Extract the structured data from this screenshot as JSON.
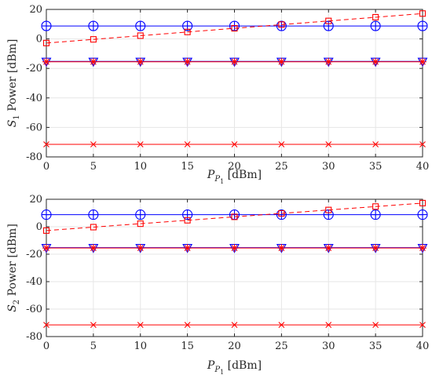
{
  "chart_data": [
    {
      "type": "line",
      "xlabel": "P_P1 [dBm]",
      "ylabel": "S_1 Power [dBm]",
      "ylabel_main": "S",
      "ylabel_sub": "1",
      "ylabel_rest": " Power [dBm]",
      "xlabel_main": "P",
      "xlabel_sub": "P",
      "xlabel_subsub": "1",
      "xlabel_rest": " [dBm]",
      "xlim": [
        0,
        40
      ],
      "ylim": [
        -80,
        20
      ],
      "xticks": [
        "0",
        "5",
        "10",
        "15",
        "20",
        "25",
        "30",
        "35",
        "40"
      ],
      "yticks": [
        "20",
        "0",
        "-20",
        "-40",
        "-60",
        "-80"
      ],
      "grid": true,
      "x": [
        0,
        5,
        10,
        15,
        20,
        25,
        30,
        35,
        40
      ],
      "series": [
        {
          "values": [
            8.8,
            8.8,
            8.8,
            8.8,
            8.8,
            8.8,
            8.8,
            8.8,
            8.8
          ],
          "color": "#0000ff",
          "line": "solid",
          "marker": "circle-plus"
        },
        {
          "values": [
            -2.8,
            -0.3,
            2.2,
            4.7,
            7.2,
            9.7,
            12.2,
            14.7,
            17.2
          ],
          "color": "#ff0000",
          "line": "dashed",
          "marker": "square"
        },
        {
          "values": [
            -15.2,
            -15.2,
            -15.2,
            -15.2,
            -15.2,
            -15.2,
            -15.2,
            -15.2,
            -15.2
          ],
          "color": "#0000ff",
          "line": "solid",
          "marker": "triangle-down"
        },
        {
          "values": [
            -15.5,
            -15.5,
            -15.5,
            -15.5,
            -15.5,
            -15.5,
            -15.5,
            -15.5,
            -15.5
          ],
          "color": "#ff0000",
          "line": "solid",
          "marker": "star"
        },
        {
          "values": [
            -71.5,
            -71.5,
            -71.5,
            -71.5,
            -71.5,
            -71.5,
            -71.5,
            -71.5,
            -71.5
          ],
          "color": "#ff0000",
          "line": "solid",
          "marker": "x"
        }
      ]
    },
    {
      "type": "line",
      "xlabel": "P_P1 [dBm]",
      "ylabel": "S_2 Power [dBm]",
      "ylabel_main": "S",
      "ylabel_sub": "2",
      "ylabel_rest": " Power [dBm]",
      "xlabel_main": "P",
      "xlabel_sub": "P",
      "xlabel_subsub": "1",
      "xlabel_rest": " [dBm]",
      "xlim": [
        0,
        40
      ],
      "ylim": [
        -80,
        20
      ],
      "xticks": [
        "0",
        "5",
        "10",
        "15",
        "20",
        "25",
        "30",
        "35",
        "40"
      ],
      "yticks": [
        "20",
        "0",
        "-20",
        "-40",
        "-60",
        "-80"
      ],
      "grid": true,
      "x": [
        0,
        5,
        10,
        15,
        20,
        25,
        30,
        35,
        40
      ],
      "series": [
        {
          "values": [
            8.8,
            8.8,
            8.8,
            8.8,
            8.8,
            8.8,
            8.8,
            8.8,
            8.8
          ],
          "color": "#0000ff",
          "line": "solid",
          "marker": "circle-plus"
        },
        {
          "values": [
            -2.8,
            -0.3,
            2.2,
            4.7,
            7.2,
            9.7,
            12.2,
            14.7,
            17.2
          ],
          "color": "#ff0000",
          "line": "dashed",
          "marker": "square"
        },
        {
          "values": [
            -15.2,
            -15.2,
            -15.2,
            -15.2,
            -15.2,
            -15.2,
            -15.2,
            -15.2,
            -15.2
          ],
          "color": "#0000ff",
          "line": "solid",
          "marker": "triangle-down"
        },
        {
          "values": [
            -15.5,
            -15.5,
            -15.5,
            -15.5,
            -15.5,
            -15.5,
            -15.5,
            -15.5,
            -15.5
          ],
          "color": "#ff0000",
          "line": "solid",
          "marker": "star"
        },
        {
          "values": [
            -71.5,
            -71.5,
            -71.5,
            -71.5,
            -71.5,
            -71.5,
            -71.5,
            -71.5,
            -71.5
          ],
          "color": "#ff0000",
          "line": "solid",
          "marker": "x"
        }
      ]
    }
  ]
}
